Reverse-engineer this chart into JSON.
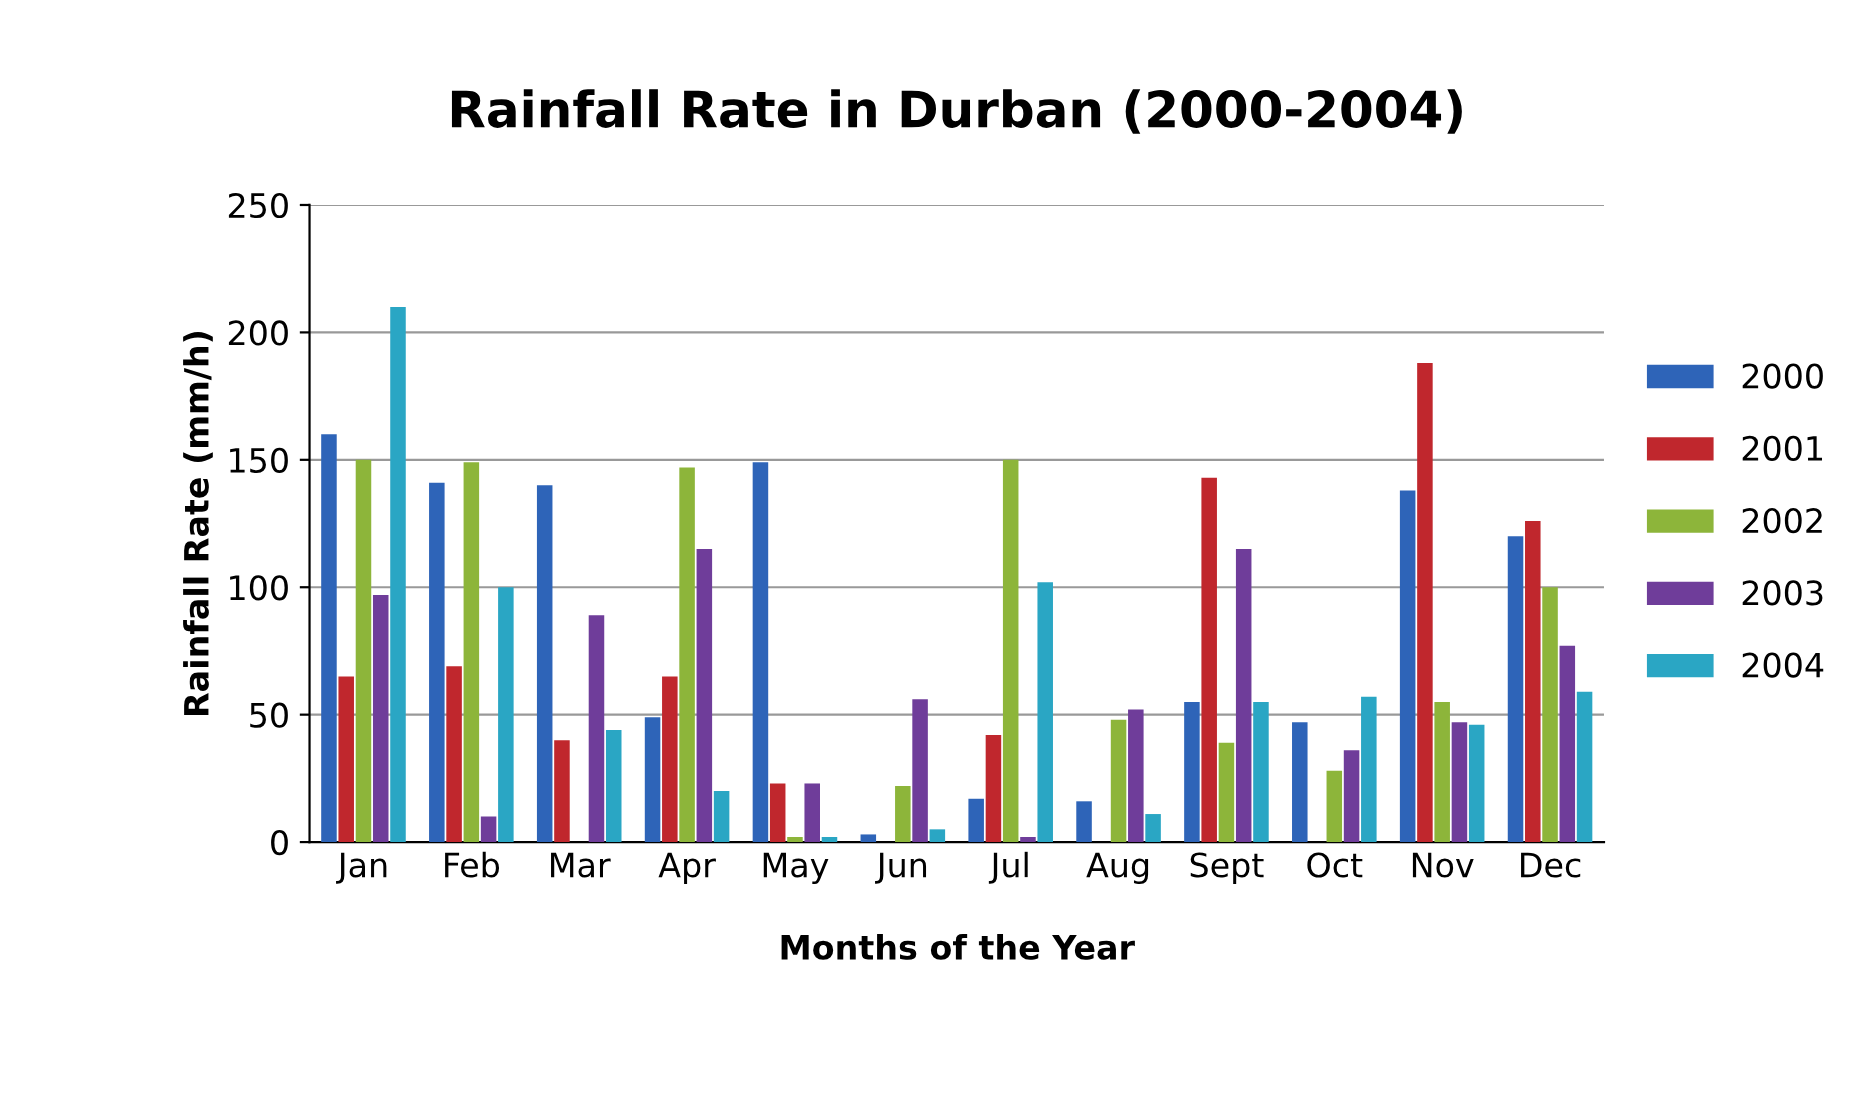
{
  "chart_data": {
    "type": "bar",
    "title": "Rainfall Rate in Durban (2000-2004)",
    "xlabel": "Months of the Year",
    "ylabel": "Rainfall Rate (mm/h)",
    "categories": [
      "Jan",
      "Feb",
      "Mar",
      "Apr",
      "May",
      "Jun",
      "Jul",
      "Aug",
      "Sept",
      "Oct",
      "Nov",
      "Dec"
    ],
    "series": [
      {
        "name": "2000",
        "color": "#2e64b8",
        "values": [
          160,
          141,
          140,
          49,
          149,
          3,
          17,
          16,
          55,
          47,
          138,
          120
        ]
      },
      {
        "name": "2001",
        "color": "#c0272d",
        "values": [
          65,
          69,
          40,
          65,
          23,
          0,
          42,
          0,
          143,
          0,
          188,
          126
        ]
      },
      {
        "name": "2002",
        "color": "#8db53a",
        "values": [
          150,
          149,
          0,
          147,
          2,
          22,
          150,
          48,
          39,
          28,
          55,
          100
        ]
      },
      {
        "name": "2003",
        "color": "#6f3d9a",
        "values": [
          97,
          10,
          89,
          115,
          23,
          56,
          2,
          52,
          115,
          36,
          47,
          77
        ]
      },
      {
        "name": "2004",
        "color": "#2aa6c4",
        "values": [
          210,
          100,
          44,
          20,
          2,
          5,
          102,
          11,
          55,
          57,
          46,
          59
        ]
      }
    ],
    "ylim": [
      0,
      250
    ],
    "yticks": [
      0,
      50,
      100,
      150,
      200,
      250
    ],
    "grid": "y",
    "legend": "right"
  }
}
